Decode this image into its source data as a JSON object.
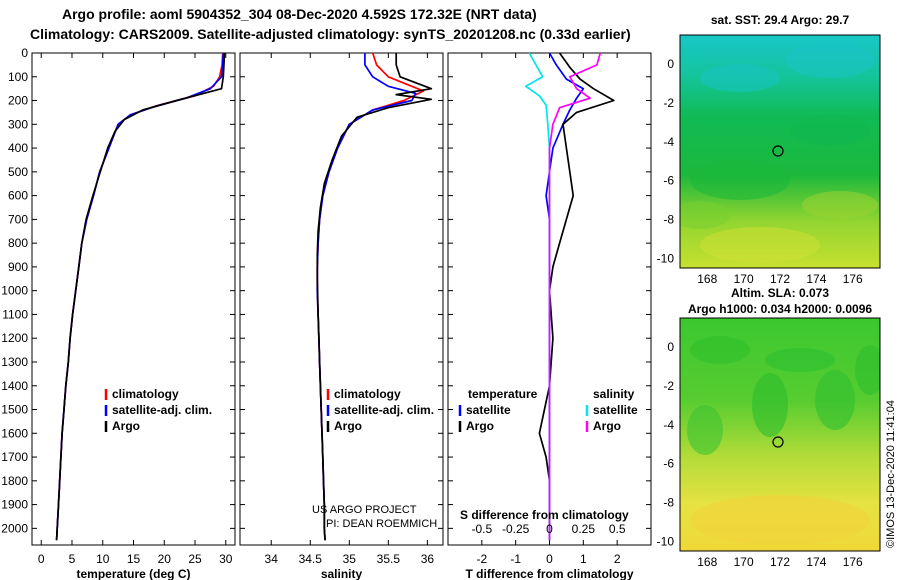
{
  "header": {
    "line1": "Argo profile: aoml 5904352_304 08-Dec-2020 4.592S 172.32E (NRT data)",
    "line2": "Climatology: CARS2009. Satellite-adjusted climatology: synTS_20201208.nc (0.33d earlier)"
  },
  "credits": {
    "project": "US ARGO PROJECT",
    "pi": "PI: DEAN ROEMMICH",
    "imos": "©IMOS 13-Dec-2020 11:41:04"
  },
  "colors": {
    "climatology": "#ff0000",
    "satellite": "#0000ff",
    "argo": "#000000",
    "sat_salinity": "#00e5ee",
    "argo_salinity": "#ff00ff"
  },
  "chart_data": [
    {
      "type": "line",
      "id": "temperature",
      "xlabel": "temperature (deg C)",
      "ylabel": "",
      "xlim": [
        -1.5,
        31.5
      ],
      "ylim": [
        2070,
        0
      ],
      "xticks": [
        0,
        5,
        10,
        15,
        20,
        25,
        30
      ],
      "xtick_labels": [
        "0",
        "5",
        "10",
        "15",
        "20",
        "25",
        "30"
      ],
      "yticks": [
        0,
        100,
        200,
        300,
        400,
        500,
        600,
        700,
        800,
        900,
        1000,
        1100,
        1200,
        1300,
        1400,
        1500,
        1600,
        1700,
        1800,
        1900,
        2000
      ],
      "legend": [
        "climatology",
        "satellite-adj. clim.",
        "Argo"
      ],
      "series": [
        {
          "name": "climatology",
          "color": "#ff0000",
          "points": [
            [
              29.5,
              0
            ],
            [
              29.4,
              50
            ],
            [
              29.0,
              100
            ],
            [
              28.0,
              140
            ],
            [
              25.0,
              180
            ],
            [
              19.0,
              220
            ],
            [
              14.5,
              260
            ],
            [
              12.5,
              300
            ],
            [
              11.0,
              400
            ],
            [
              9.5,
              500
            ],
            [
              8.5,
              600
            ],
            [
              7.4,
              700
            ],
            [
              6.6,
              800
            ],
            [
              6.1,
              900
            ],
            [
              5.6,
              1000
            ],
            [
              5.1,
              1100
            ],
            [
              4.7,
              1200
            ],
            [
              4.4,
              1300
            ],
            [
              4.0,
              1400
            ],
            [
              3.7,
              1500
            ],
            [
              3.4,
              1600
            ],
            [
              3.2,
              1700
            ],
            [
              3.0,
              1800
            ],
            [
              2.8,
              1900
            ],
            [
              2.6,
              2000
            ],
            [
              2.5,
              2050
            ]
          ]
        },
        {
          "name": "satellite-adj. clim.",
          "color": "#0000ff",
          "points": [
            [
              29.6,
              0
            ],
            [
              29.5,
              50
            ],
            [
              29.3,
              100
            ],
            [
              27.5,
              150
            ],
            [
              23.5,
              190
            ],
            [
              18.5,
              225
            ],
            [
              14.5,
              260
            ],
            [
              12.5,
              300
            ],
            [
              11.0,
              400
            ],
            [
              9.5,
              500
            ],
            [
              8.5,
              600
            ],
            [
              7.4,
              700
            ],
            [
              6.6,
              800
            ],
            [
              6.1,
              900
            ],
            [
              5.6,
              1000
            ],
            [
              5.1,
              1100
            ],
            [
              4.7,
              1200
            ],
            [
              4.4,
              1300
            ],
            [
              4.0,
              1400
            ],
            [
              3.7,
              1500
            ],
            [
              3.4,
              1600
            ],
            [
              3.2,
              1700
            ],
            [
              3.0,
              1800
            ],
            [
              2.8,
              1900
            ],
            [
              2.6,
              2000
            ],
            [
              2.5,
              2050
            ]
          ]
        },
        {
          "name": "Argo",
          "color": "#000000",
          "points": [
            [
              29.8,
              0
            ],
            [
              29.7,
              50
            ],
            [
              29.6,
              100
            ],
            [
              29.3,
              150
            ],
            [
              22.0,
              200
            ],
            [
              16.5,
              240
            ],
            [
              13.5,
              280
            ],
            [
              12.0,
              330
            ],
            [
              10.8,
              400
            ],
            [
              9.6,
              500
            ],
            [
              8.4,
              600
            ],
            [
              7.3,
              700
            ],
            [
              6.6,
              800
            ],
            [
              6.1,
              900
            ],
            [
              5.6,
              1000
            ],
            [
              5.1,
              1100
            ],
            [
              4.7,
              1200
            ],
            [
              4.4,
              1300
            ],
            [
              4.0,
              1400
            ],
            [
              3.7,
              1500
            ],
            [
              3.4,
              1600
            ],
            [
              3.2,
              1700
            ],
            [
              3.0,
              1800
            ],
            [
              2.8,
              1900
            ],
            [
              2.6,
              2000
            ],
            [
              2.5,
              2050
            ]
          ]
        }
      ]
    },
    {
      "type": "line",
      "id": "salinity",
      "xlabel": "salinity",
      "ylabel": "",
      "xlim": [
        33.6,
        36.2
      ],
      "ylim": [
        2070,
        0
      ],
      "xticks": [
        34,
        34.5,
        35,
        35.5,
        36
      ],
      "xtick_labels": [
        "34",
        "34.5",
        "35",
        "35.5",
        "36"
      ],
      "legend": [
        "climatology",
        "satellite-adj. clim.",
        "Argo"
      ],
      "series": [
        {
          "name": "climatology",
          "color": "#ff0000",
          "points": [
            [
              35.3,
              0
            ],
            [
              35.35,
              50
            ],
            [
              35.5,
              100
            ],
            [
              35.8,
              140
            ],
            [
              35.95,
              160
            ],
            [
              35.7,
              200
            ],
            [
              35.3,
              240
            ],
            [
              35.0,
              300
            ],
            [
              34.85,
              400
            ],
            [
              34.74,
              500
            ],
            [
              34.66,
              600
            ],
            [
              34.62,
              700
            ],
            [
              34.6,
              800
            ],
            [
              34.59,
              900
            ],
            [
              34.59,
              1000
            ],
            [
              34.6,
              1100
            ],
            [
              34.61,
              1200
            ],
            [
              34.62,
              1300
            ],
            [
              34.63,
              1400
            ],
            [
              34.64,
              1500
            ],
            [
              34.65,
              1600
            ],
            [
              34.66,
              1700
            ],
            [
              34.67,
              1800
            ],
            [
              34.68,
              1900
            ],
            [
              34.68,
              2000
            ],
            [
              34.69,
              2050
            ]
          ]
        },
        {
          "name": "satellite-adj. clim.",
          "color": "#0000ff",
          "points": [
            [
              35.2,
              0
            ],
            [
              35.2,
              50
            ],
            [
              35.3,
              100
            ],
            [
              35.5,
              140
            ],
            [
              35.85,
              170
            ],
            [
              35.8,
              200
            ],
            [
              35.3,
              240
            ],
            [
              35.0,
              300
            ],
            [
              34.85,
              400
            ],
            [
              34.74,
              500
            ],
            [
              34.66,
              600
            ],
            [
              34.62,
              700
            ],
            [
              34.6,
              800
            ],
            [
              34.59,
              900
            ],
            [
              34.59,
              1000
            ],
            [
              34.6,
              1100
            ],
            [
              34.61,
              1200
            ],
            [
              34.62,
              1300
            ],
            [
              34.63,
              1400
            ],
            [
              34.64,
              1500
            ],
            [
              34.65,
              1600
            ],
            [
              34.66,
              1700
            ],
            [
              34.67,
              1800
            ],
            [
              34.68,
              1900
            ],
            [
              34.68,
              2000
            ],
            [
              34.69,
              2050
            ]
          ]
        },
        {
          "name": "Argo",
          "color": "#000000",
          "points": [
            [
              35.6,
              0
            ],
            [
              35.6,
              50
            ],
            [
              35.65,
              100
            ],
            [
              36.05,
              150
            ],
            [
              35.6,
              175
            ],
            [
              36.05,
              195
            ],
            [
              35.5,
              230
            ],
            [
              35.1,
              270
            ],
            [
              34.9,
              350
            ],
            [
              34.78,
              450
            ],
            [
              34.68,
              550
            ],
            [
              34.63,
              650
            ],
            [
              34.6,
              750
            ],
            [
              34.59,
              850
            ],
            [
              34.59,
              950
            ],
            [
              34.6,
              1100
            ],
            [
              34.61,
              1200
            ],
            [
              34.62,
              1300
            ],
            [
              34.63,
              1400
            ],
            [
              34.64,
              1500
            ],
            [
              34.65,
              1600
            ],
            [
              34.66,
              1700
            ],
            [
              34.67,
              1800
            ],
            [
              34.68,
              1900
            ],
            [
              34.68,
              2000
            ],
            [
              34.69,
              2050
            ]
          ]
        }
      ]
    },
    {
      "type": "line",
      "id": "difference",
      "xlabel": "T difference from climatology",
      "xlabel_top": "S difference from climatology",
      "xlim": [
        -3.0,
        3.0
      ],
      "ylim": [
        2070,
        0
      ],
      "xticks": [
        -2,
        -1,
        0,
        1,
        2
      ],
      "xtick_labels": [
        "-2",
        "-1",
        "0",
        "1",
        "2"
      ],
      "s_ticks": [
        -0.5,
        -0.25,
        0,
        0.25,
        0.5
      ],
      "s_tick_labels": [
        "-0.5",
        "-0.25",
        "0",
        "0.25",
        "0.5"
      ],
      "legend_temperature": [
        "temperature",
        "satellite",
        "Argo"
      ],
      "legend_salinity": [
        "salinity",
        "satellite",
        "Argo"
      ],
      "series": [
        {
          "name": "temperature satellite",
          "color": "#0000ff",
          "points": [
            [
              0.0,
              0
            ],
            [
              0.2,
              50
            ],
            [
              0.5,
              110
            ],
            [
              1.0,
              150
            ],
            [
              0.8,
              190
            ],
            [
              0.6,
              240
            ],
            [
              0.4,
              300
            ],
            [
              0.1,
              400
            ],
            [
              0.0,
              500
            ],
            [
              -0.1,
              600
            ],
            [
              0.0,
              700
            ],
            [
              0.0,
              800
            ],
            [
              0.0,
              1000
            ],
            [
              0.0,
              2050
            ]
          ]
        },
        {
          "name": "temperature Argo",
          "color": "#000000",
          "points": [
            [
              0.3,
              0
            ],
            [
              0.6,
              60
            ],
            [
              0.9,
              110
            ],
            [
              1.3,
              150
            ],
            [
              1.9,
              200
            ],
            [
              0.8,
              250
            ],
            [
              0.4,
              300
            ],
            [
              0.5,
              400
            ],
            [
              0.6,
              500
            ],
            [
              0.7,
              600
            ],
            [
              0.5,
              700
            ],
            [
              0.3,
              800
            ],
            [
              0.1,
              900
            ],
            [
              0.0,
              1000
            ],
            [
              0.1,
              1200
            ],
            [
              0.0,
              1400
            ],
            [
              -0.3,
              1600
            ],
            [
              -0.1,
              1700
            ],
            [
              0.0,
              1800
            ],
            [
              0.0,
              2050
            ]
          ]
        },
        {
          "name": "salinity satellite",
          "color": "#00e5ee",
          "points": [
            [
              -0.6,
              0
            ],
            [
              -0.4,
              50
            ],
            [
              -0.2,
              100
            ],
            [
              -0.7,
              140
            ],
            [
              -0.3,
              180
            ],
            [
              -0.1,
              220
            ],
            [
              -0.05,
              300
            ],
            [
              0.0,
              400
            ],
            [
              0.0,
              600
            ],
            [
              0.0,
              1000
            ],
            [
              0.0,
              2050
            ]
          ]
        },
        {
          "name": "salinity Argo",
          "color": "#ff00ff",
          "points": [
            [
              1.5,
              0
            ],
            [
              1.4,
              50
            ],
            [
              0.6,
              100
            ],
            [
              0.8,
              150
            ],
            [
              1.2,
              190
            ],
            [
              0.3,
              230
            ],
            [
              0.1,
              300
            ],
            [
              0.0,
              400
            ],
            [
              0.0,
              600
            ],
            [
              0.0,
              1000
            ],
            [
              0.0,
              2050
            ]
          ]
        }
      ]
    },
    {
      "type": "heatmap",
      "id": "sst-map",
      "title": "sat. SST: 29.4 Argo: 29.7",
      "xlim": [
        166.5,
        177.5
      ],
      "ylim": [
        -10.5,
        1.5
      ],
      "xticks": [
        168,
        170,
        172,
        174,
        176
      ],
      "xtick_labels": [
        "168",
        "170",
        "172",
        "174",
        "176"
      ],
      "yticks": [
        0,
        -2,
        -4,
        -6,
        -8,
        -10
      ],
      "ytick_labels": [
        "0",
        "-2",
        "-4",
        "-6",
        "-8",
        "-10"
      ],
      "marker": [
        172.32,
        -4.592
      ]
    },
    {
      "type": "heatmap",
      "id": "sla-map",
      "title": "Altim. SLA: 0.073",
      "subtitle": "Argo h1000: 0.034 h2000: 0.0096",
      "xlim": [
        166.5,
        177.5
      ],
      "ylim": [
        -10.5,
        1.5
      ],
      "xticks": [
        168,
        170,
        172,
        174,
        176
      ],
      "xtick_labels": [
        "168",
        "170",
        "172",
        "174",
        "176"
      ],
      "yticks": [
        0,
        -2,
        -4,
        -6,
        -8,
        -10
      ],
      "ytick_labels": [
        "0",
        "-2",
        "-4",
        "-6",
        "-8",
        "-10"
      ],
      "marker": [
        172.32,
        -4.592
      ]
    }
  ]
}
